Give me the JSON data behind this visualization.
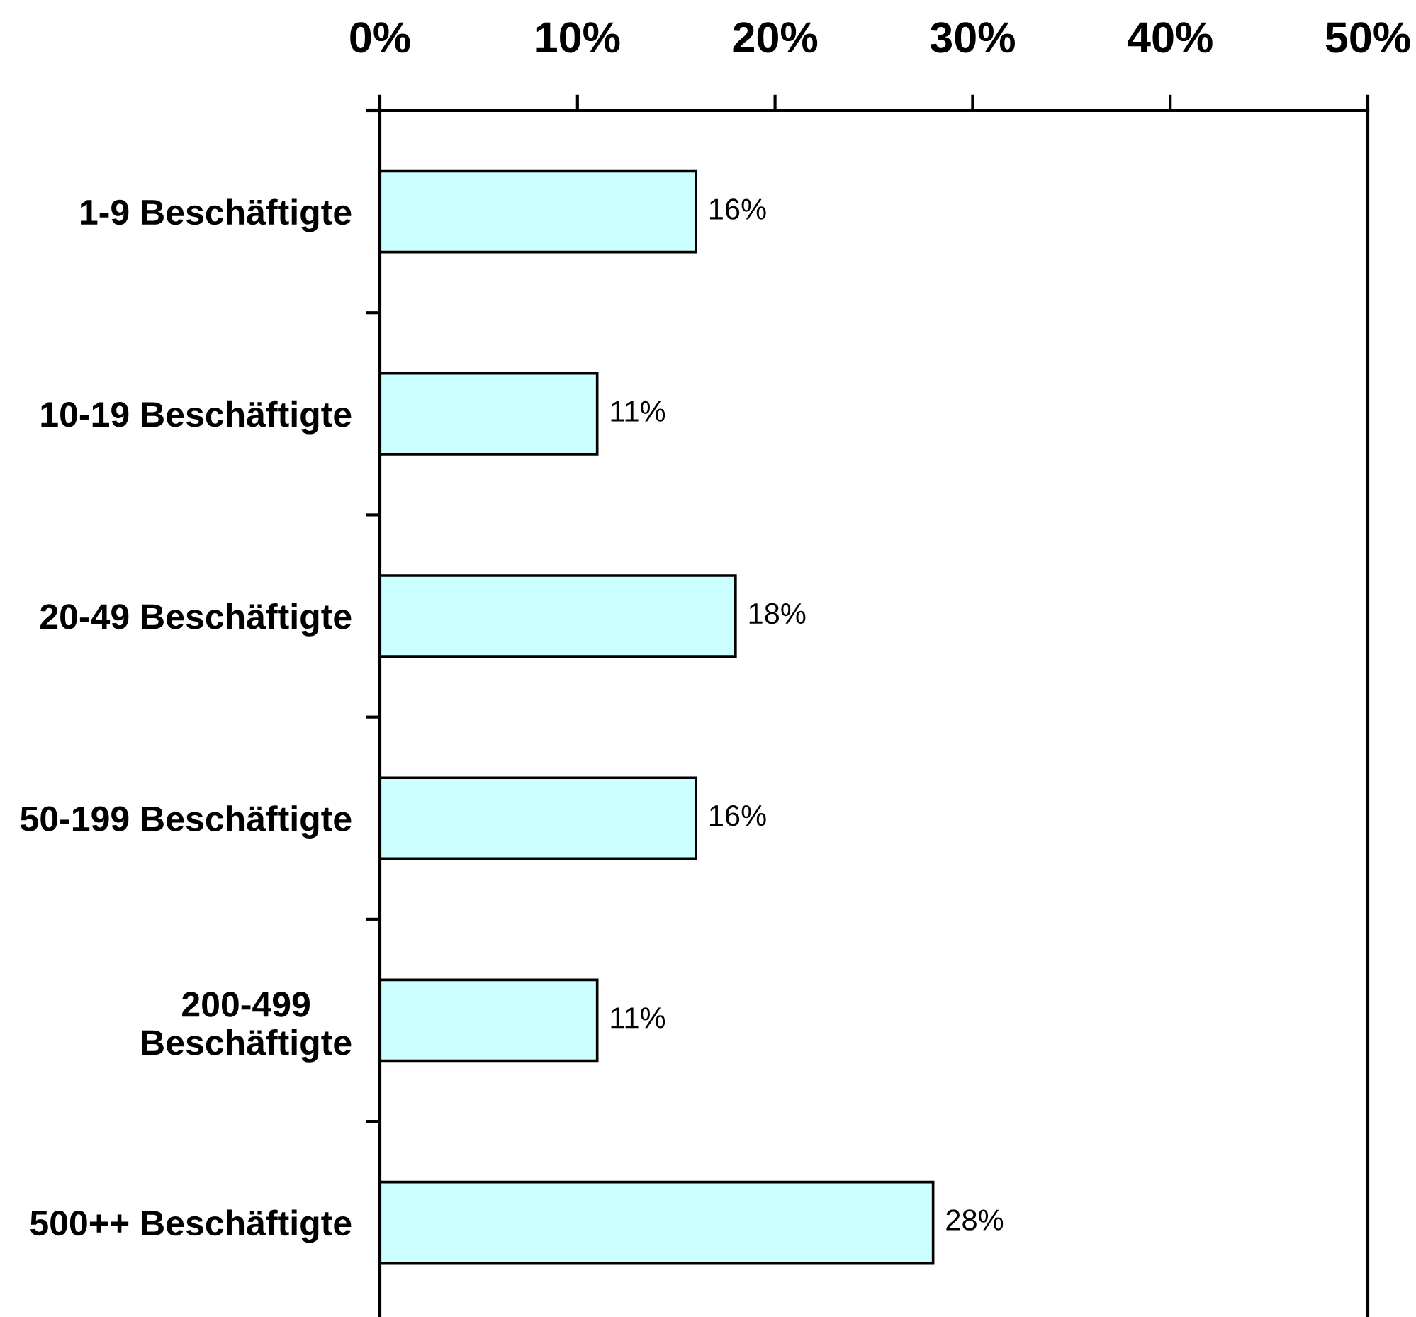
{
  "chart_data": {
    "type": "bar",
    "orientation": "horizontal",
    "categories": [
      "1-9 Beschäftigte",
      "10-19 Beschäftigte",
      "20-49 Beschäftigte",
      "50-199 Beschäftigte",
      "200-499\nBeschäftigte",
      "500++ Beschäftigte"
    ],
    "values": [
      16,
      11,
      18,
      16,
      11,
      28
    ],
    "value_labels": [
      "16%",
      "11%",
      "18%",
      "16%",
      "11%",
      "28%"
    ],
    "color": "#ccffff",
    "xlim": [
      0,
      50
    ],
    "xticks": [
      {
        "value": 0,
        "label": "0%"
      },
      {
        "value": 10,
        "label": "10%"
      },
      {
        "value": 20,
        "label": "20%"
      },
      {
        "value": 30,
        "label": "30%"
      },
      {
        "value": 40,
        "label": "40%"
      },
      {
        "value": 50,
        "label": "50%"
      }
    ],
    "grid": false
  }
}
